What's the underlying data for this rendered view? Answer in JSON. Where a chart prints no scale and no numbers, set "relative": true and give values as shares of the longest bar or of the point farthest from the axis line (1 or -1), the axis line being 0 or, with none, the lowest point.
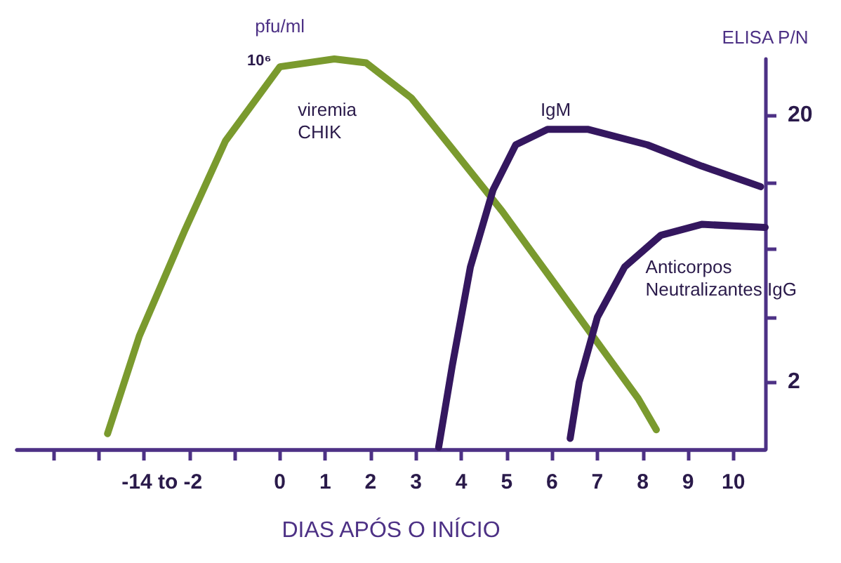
{
  "chart_data": [
    {
      "type": "line",
      "relative": true,
      "ylabel": "pfu/ml",
      "annotations": [
        "10⁶"
      ],
      "xlim": [
        -5.8,
        10.7
      ],
      "grid": false,
      "legend": false,
      "marker": "none",
      "line_style": "solid",
      "series": [
        {
          "name": "viremia CHIK",
          "color": "#7a9a2e",
          "x": [
            -3.8,
            -3.1,
            -2.1,
            -1.2,
            0,
            1.2,
            1.9,
            2.9,
            3.8,
            4.9,
            5.9,
            6.9,
            7.9,
            8.3
          ],
          "values": [
            0.04,
            0.29,
            0.56,
            0.79,
            0.98,
            1,
            0.99,
            0.9,
            0.77,
            0.61,
            0.45,
            0.29,
            0.13,
            0.05
          ]
        }
      ]
    },
    {
      "type": "line",
      "xlabel": "DIAS APÓS O INÍCIO",
      "y2label": "ELISA P/N",
      "xlim": [
        -5.8,
        10.7
      ],
      "xticks": [
        {
          "value": -5,
          "label": null
        },
        {
          "value": -4,
          "label": null
        },
        {
          "value": -3,
          "label": null
        },
        {
          "value": -2,
          "label": null
        },
        {
          "value": -1,
          "label": null
        },
        {
          "value": -2.6,
          "label": "-14 to -2"
        },
        0,
        1,
        2,
        3,
        4,
        5,
        6,
        7,
        8,
        9,
        10
      ],
      "y2lim": [
        1.12,
        32.5
      ],
      "y2ticks": [
        2,
        {
          "value": 3.5,
          "label": null
        },
        {
          "value": 6.3,
          "label": null
        },
        {
          "value": 11.2,
          "label": null
        },
        20
      ],
      "log": "y2",
      "grid": false,
      "legend": false,
      "marker": "none",
      "line_style": "solid",
      "series": [
        {
          "name": "IgM",
          "color": "#34175f",
          "axis": "y2",
          "x": [
            3.5,
            3.8,
            4.2,
            4.7,
            5.2,
            5.9,
            6.8,
            8.1,
            9.3,
            10.6
          ],
          "values": [
            1.14,
            2.3,
            5.4,
            10.5,
            15.5,
            17.7,
            17.7,
            15.5,
            12.9,
            10.8
          ]
        },
        {
          "name": "Anticorpos Neutralizantes IgG",
          "color": "#34175f",
          "axis": "y2",
          "x": [
            6.4,
            6.6,
            7.0,
            7.6,
            8.4,
            9.3,
            10.7
          ],
          "values": [
            1.23,
            2.0,
            3.5,
            5.4,
            7.1,
            7.8,
            7.6
          ]
        }
      ]
    }
  ]
}
